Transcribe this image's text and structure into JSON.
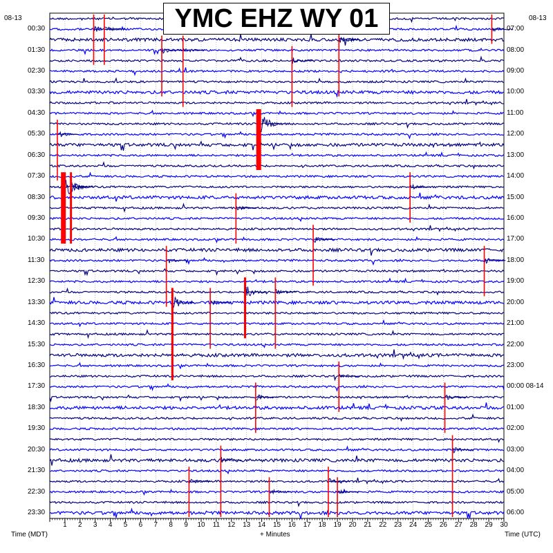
{
  "chart_data": {
    "type": "line",
    "title": "YMC EHZ WY 01",
    "left_date": "08-13",
    "right_date": "08-13",
    "left_times": [
      "00:30",
      "01:30",
      "02:30",
      "03:30",
      "04:30",
      "05:30",
      "06:30",
      "07:30",
      "08:30",
      "09:30",
      "10:30",
      "11:30",
      "12:30",
      "13:30",
      "14:30",
      "15:30",
      "16:30",
      "17:30",
      "18:30",
      "19:30",
      "20:30",
      "21:30",
      "22:30",
      "23:30"
    ],
    "right_times": [
      "07:00",
      "08:00",
      "09:00",
      "10:00",
      "11:00",
      "12:00",
      "13:00",
      "14:00",
      "15:00",
      "16:00",
      "17:00",
      "18:00",
      "19:00",
      "20:00",
      "21:00",
      "22:00",
      "23:00",
      "00:00 08-14",
      "01:00",
      "02:00",
      "03:00",
      "04:00",
      "05:00",
      "06:00"
    ],
    "x_ticks": [
      "1",
      "2",
      "3",
      "4",
      "5",
      "6",
      "7",
      "8",
      "9",
      "10",
      "11",
      "12",
      "13",
      "14",
      "15",
      "16",
      "17",
      "18",
      "19",
      "20",
      "21",
      "22",
      "23",
      "24",
      "25",
      "26",
      "27",
      "28",
      "29",
      "30"
    ],
    "x_range": [
      0,
      30
    ],
    "xlabel": "+ Minutes",
    "left_axis_label": "Time (MDT)",
    "right_axis_label": "Time (UTC)",
    "trace_count": 48,
    "trace_colors": [
      "#000080",
      "#0000ff"
    ],
    "clip_color": "#ff0000",
    "events": [
      {
        "minute": 13.8,
        "start_trace": 9,
        "end_trace": 15,
        "strength": 3
      },
      {
        "minute": 0.9,
        "start_trace": 15,
        "end_trace": 22,
        "strength": 3
      },
      {
        "minute": 1.4,
        "start_trace": 15,
        "end_trace": 22,
        "strength": 2
      },
      {
        "minute": 2.9,
        "start_trace": 0,
        "end_trace": 5,
        "strength": 1
      },
      {
        "minute": 3.6,
        "start_trace": 0,
        "end_trace": 5,
        "strength": 1
      },
      {
        "minute": 7.4,
        "start_trace": 2,
        "end_trace": 8,
        "strength": 1
      },
      {
        "minute": 8.8,
        "start_trace": 2,
        "end_trace": 9,
        "strength": 1
      },
      {
        "minute": 16.0,
        "start_trace": 3,
        "end_trace": 9,
        "strength": 1
      },
      {
        "minute": 19.1,
        "start_trace": 1,
        "end_trace": 8,
        "strength": 1
      },
      {
        "minute": 29.2,
        "start_trace": 0,
        "end_trace": 3,
        "strength": 1
      },
      {
        "minute": 0.5,
        "start_trace": 10,
        "end_trace": 16,
        "strength": 1
      },
      {
        "minute": 12.3,
        "start_trace": 17,
        "end_trace": 22,
        "strength": 1
      },
      {
        "minute": 7.7,
        "start_trace": 22,
        "end_trace": 28,
        "strength": 1
      },
      {
        "minute": 8.1,
        "start_trace": 26,
        "end_trace": 35,
        "strength": 2
      },
      {
        "minute": 10.6,
        "start_trace": 26,
        "end_trace": 32,
        "strength": 1
      },
      {
        "minute": 12.9,
        "start_trace": 25,
        "end_trace": 31,
        "strength": 2
      },
      {
        "minute": 14.9,
        "start_trace": 25,
        "end_trace": 32,
        "strength": 1
      },
      {
        "minute": 19.1,
        "start_trace": 33,
        "end_trace": 38,
        "strength": 1
      },
      {
        "minute": 13.6,
        "start_trace": 35,
        "end_trace": 40,
        "strength": 1
      },
      {
        "minute": 23.8,
        "start_trace": 15,
        "end_trace": 20,
        "strength": 1
      },
      {
        "minute": 28.7,
        "start_trace": 22,
        "end_trace": 27,
        "strength": 1
      },
      {
        "minute": 26.1,
        "start_trace": 35,
        "end_trace": 40,
        "strength": 1
      },
      {
        "minute": 26.6,
        "start_trace": 40,
        "end_trace": 48,
        "strength": 1
      },
      {
        "minute": 11.3,
        "start_trace": 41,
        "end_trace": 48,
        "strength": 1
      },
      {
        "minute": 9.2,
        "start_trace": 43,
        "end_trace": 48,
        "strength": 1
      },
      {
        "minute": 18.4,
        "start_trace": 43,
        "end_trace": 48,
        "strength": 1
      },
      {
        "minute": 19.0,
        "start_trace": 44,
        "end_trace": 48,
        "strength": 1
      },
      {
        "minute": 14.5,
        "start_trace": 44,
        "end_trace": 48,
        "strength": 1
      },
      {
        "minute": 17.4,
        "start_trace": 20,
        "end_trace": 26,
        "strength": 1
      }
    ]
  }
}
